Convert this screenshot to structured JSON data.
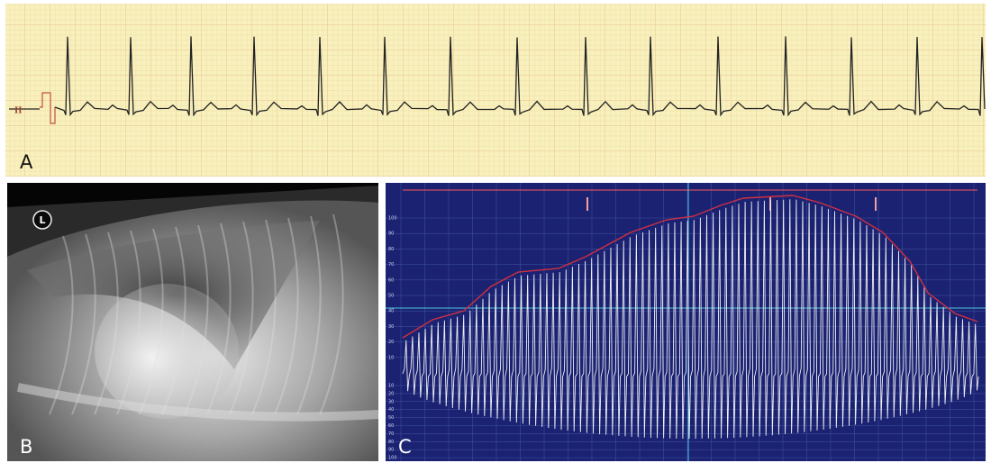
{
  "panel_a": {
    "label": "A",
    "lead": "II"
  },
  "panel_b": {
    "label": "B",
    "marker": "L"
  },
  "panel_c": {
    "label": "C",
    "upper_axis_labels": [
      "100",
      "90",
      "80",
      "70",
      "60",
      "50",
      "40",
      "30",
      "20",
      "10"
    ],
    "lower_axis_labels": [
      "10",
      "20",
      "30",
      "40",
      "50",
      "60",
      "70",
      "80",
      "90",
      "100"
    ]
  }
}
